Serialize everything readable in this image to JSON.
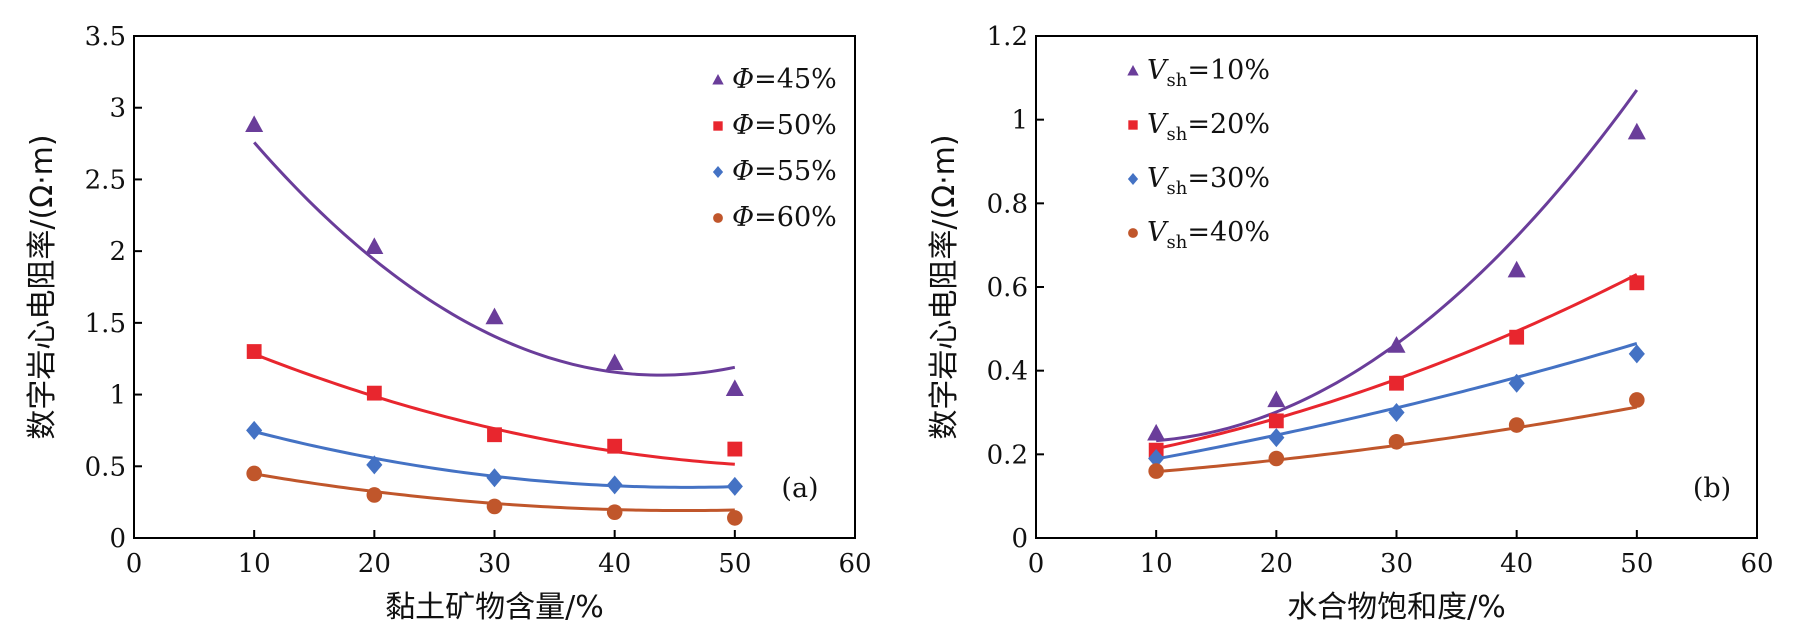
{
  "chart_data": [
    {
      "panel": "(a)",
      "type": "scatter",
      "xlabel": "黏土矿物含量/%",
      "ylabel": "数字岩心电阻率/(Ω·m)",
      "xlim": [
        0,
        60
      ],
      "ylim": [
        0,
        3.5
      ],
      "xticks": [
        "0",
        "10",
        "20",
        "30",
        "40",
        "50",
        "60"
      ],
      "yticks": [
        "0",
        "0.5",
        "1",
        "1.5",
        "2",
        "2.5",
        "3",
        "3.5"
      ],
      "legend_position": "top-right",
      "x": [
        10,
        20,
        30,
        40,
        50
      ],
      "series": [
        {
          "name_var": "Φ",
          "name_sub": "",
          "name_val": "=45%",
          "marker": "triangle",
          "color": "#6a3d9a",
          "values": [
            2.88,
            2.03,
            1.54,
            1.22,
            1.04
          ],
          "fit": [
            3.86,
            -0.1244,
            0.00142
          ]
        },
        {
          "name_var": "Φ",
          "name_sub": "",
          "name_val": "=50%",
          "marker": "square",
          "color": "#e8262e",
          "values": [
            1.3,
            1.01,
            0.72,
            0.64,
            0.62
          ],
          "fit": [
            1.644,
            -0.0396,
            0.00034
          ]
        },
        {
          "name_var": "Φ",
          "name_sub": "",
          "name_val": "=55%",
          "marker": "diamond",
          "color": "#4472c4",
          "values": [
            0.75,
            0.51,
            0.42,
            0.37,
            0.36
          ],
          "fit": [
            0.988,
            -0.0276,
            0.0003
          ]
        },
        {
          "name_var": "Φ",
          "name_sub": "",
          "name_val": "=60%",
          "marker": "circle",
          "color": "#c0562b",
          "values": [
            0.45,
            0.3,
            0.22,
            0.18,
            0.14
          ],
          "fit": [
            0.61,
            -0.0183,
            0.0002
          ]
        }
      ]
    },
    {
      "panel": "(b)",
      "type": "scatter",
      "xlabel": "水合物饱和度/%",
      "ylabel": "数字岩心电阻率/(Ω·m)",
      "xlim": [
        0,
        60
      ],
      "ylim": [
        0,
        1.2
      ],
      "xticks": [
        "0",
        "10",
        "20",
        "30",
        "40",
        "50",
        "60"
      ],
      "yticks": [
        "0",
        "0.2",
        "0.4",
        "0.6",
        "0.8",
        "1",
        "1.2"
      ],
      "legend_position": "top-left",
      "x": [
        10,
        20,
        30,
        40,
        50
      ],
      "series": [
        {
          "name_var": "V",
          "name_sub": "sh",
          "name_val": "=10%",
          "marker": "triangle",
          "color": "#6a3d9a",
          "values": [
            0.25,
            0.33,
            0.46,
            0.64,
            0.97
          ],
          "fit": [
            0.2583,
            -0.00725,
            0.00047
          ]
        },
        {
          "name_var": "V",
          "name_sub": "sh",
          "name_val": "=20%",
          "marker": "square",
          "color": "#e8262e",
          "values": [
            0.21,
            0.28,
            0.37,
            0.48,
            0.61
          ],
          "fit": [
            0.1625,
            0.00405,
            0.000106
          ]
        },
        {
          "name_var": "V",
          "name_sub": "sh",
          "name_val": "=30%",
          "marker": "diamond",
          "color": "#4472c4",
          "values": [
            0.19,
            0.24,
            0.3,
            0.37,
            0.44
          ],
          "fit": [
            0.14,
            0.0045,
            4e-05
          ]
        },
        {
          "name_var": "V",
          "name_sub": "sh",
          "name_val": "=40%",
          "marker": "circle",
          "color": "#c0562b",
          "values": [
            0.16,
            0.19,
            0.23,
            0.27,
            0.33
          ],
          "fit": [
            0.138,
            0.0017,
            3.6e-05
          ]
        }
      ]
    }
  ]
}
